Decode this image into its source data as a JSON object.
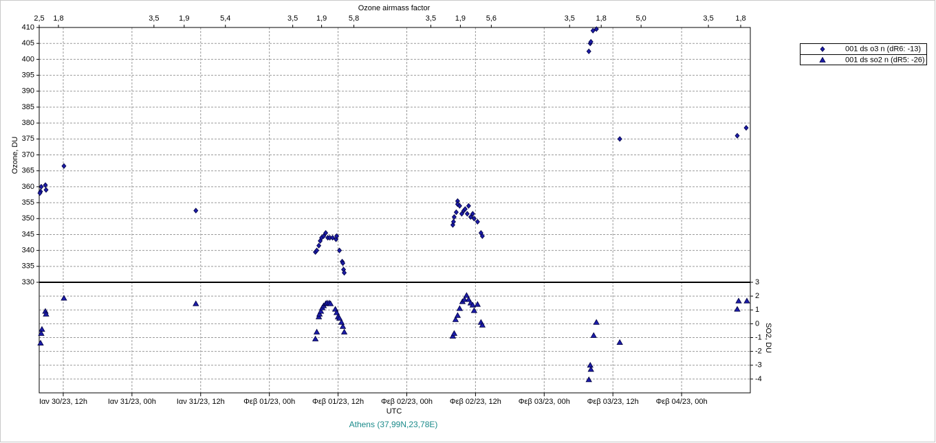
{
  "chart_data": {
    "type": "scatter",
    "x2label": "Ozone airmass factor",
    "xlabel": "UTC",
    "ylabel": "Ozone, DU",
    "y2label": "SO2, DU",
    "caption": "Athens (37,99N,23,78E)",
    "xlim": [
      -4.2,
      120
    ],
    "xticks": [
      {
        "value": 0,
        "label": "Ιαν 30/23, 12h"
      },
      {
        "value": 12,
        "label": "Ιαν 31/23, 00h"
      },
      {
        "value": 24,
        "label": "Ιαν 31/23, 12h"
      },
      {
        "value": 36,
        "label": "Φεβ 01/23, 00h"
      },
      {
        "value": 48,
        "label": "Φεβ 01/23, 12h"
      },
      {
        "value": 60,
        "label": "Φεβ 02/23, 00h"
      },
      {
        "value": 72,
        "label": "Φεβ 02/23, 12h"
      },
      {
        "value": 84,
        "label": "Φεβ 03/23, 00h"
      },
      {
        "value": 96,
        "label": "Φεβ 03/23, 12h"
      },
      {
        "value": 108,
        "label": "Φεβ 04/23, 00h"
      }
    ],
    "x2ticks": [
      {
        "value": -4.2,
        "label": "2,5"
      },
      {
        "value": -0.84,
        "label": "1,8"
      },
      {
        "value": 15.84,
        "label": "3,5"
      },
      {
        "value": 21.12,
        "label": "1,9"
      },
      {
        "value": 28.32,
        "label": "5,4"
      },
      {
        "value": 40.08,
        "label": "3,5"
      },
      {
        "value": 45.12,
        "label": "1,9"
      },
      {
        "value": 50.76,
        "label": "5,8"
      },
      {
        "value": 64.2,
        "label": "3,5"
      },
      {
        "value": 69.36,
        "label": "1,9"
      },
      {
        "value": 74.76,
        "label": "5,6"
      },
      {
        "value": 88.44,
        "label": "3,5"
      },
      {
        "value": 93.96,
        "label": "1,8"
      },
      {
        "value": 100.92,
        "label": "5,0"
      },
      {
        "value": 112.68,
        "label": "3,5"
      },
      {
        "value": 118.32,
        "label": "1,8"
      }
    ],
    "ylim": [
      330,
      410
    ],
    "yticks": [
      330,
      335,
      340,
      345,
      350,
      355,
      360,
      365,
      370,
      375,
      380,
      385,
      390,
      395,
      400,
      405,
      410
    ],
    "y2lim": [
      -5,
      3
    ],
    "y2ticks": [
      -4,
      -3,
      -2,
      -1,
      0,
      1,
      2,
      3
    ],
    "grid": true,
    "legend": "upper right",
    "series": [
      {
        "name": "001 ds o3  n (dR6: -13)",
        "color": "#1c1ca8",
        "marker": "diamond",
        "x": [
          -3.96,
          -4.08,
          -3.84,
          -3.12,
          -3.0,
          0.12,
          23.16,
          44.04,
          44.28,
          44.64,
          44.88,
          45.12,
          45.48,
          45.84,
          46.2,
          46.56,
          47.04,
          47.64,
          47.76,
          48.24,
          48.72,
          48.84,
          48.96,
          49.08,
          68.04,
          68.16,
          68.28,
          68.64,
          68.88,
          68.88,
          69.24,
          69.6,
          69.96,
          70.2,
          70.56,
          70.8,
          71.16,
          71.52,
          71.76,
          72.36,
          72.96,
          73.2,
          91.8,
          92.04,
          92.16,
          92.52,
          93.12,
          97.2,
          117.72,
          119.28
        ],
        "values": [
          358.5,
          358,
          360,
          360.5,
          359,
          366.5,
          352.5,
          339.5,
          340,
          341.5,
          343,
          344,
          344.5,
          345.5,
          344,
          344,
          344,
          343.5,
          344.5,
          340,
          336.5,
          336,
          334,
          333,
          348,
          349,
          350.5,
          352,
          355.5,
          354.5,
          354,
          351.5,
          352.5,
          353,
          351.5,
          354,
          350.5,
          351.5,
          350,
          349,
          345.5,
          344.5,
          402.5,
          405,
          405.5,
          409,
          409.5,
          375,
          376,
          378.5
        ]
      },
      {
        "name": "001 ds so2  n (dR5: -26)",
        "color": "#1c1ca8",
        "marker": "triangle",
        "axis": "y2",
        "x": [
          -3.96,
          -3.72,
          -3.84,
          -3.12,
          -3.0,
          0.12,
          23.16,
          44.04,
          44.28,
          44.64,
          44.76,
          45.0,
          45.24,
          45.48,
          45.84,
          46.08,
          46.44,
          46.68,
          47.52,
          47.76,
          48.0,
          48.24,
          48.6,
          48.84,
          49.08,
          68.04,
          68.28,
          68.52,
          68.88,
          69.24,
          69.72,
          70.08,
          70.44,
          70.8,
          71.16,
          71.52,
          71.76,
          72.36,
          72.96,
          73.2,
          91.8,
          92.04,
          92.16,
          92.64,
          93.12,
          97.2,
          117.72,
          117.96,
          119.4
        ],
        "values": [
          -1.4,
          -0.4,
          -0.7,
          0.9,
          0.7,
          1.85,
          1.45,
          -1.1,
          -0.6,
          0.5,
          0.7,
          0.9,
          1.15,
          1.3,
          1.45,
          1.5,
          1.5,
          1.45,
          1.05,
          0.8,
          0.5,
          0.4,
          0.1,
          -0.2,
          -0.6,
          -0.9,
          -0.7,
          0.3,
          0.6,
          1.1,
          1.6,
          1.75,
          2.05,
          1.75,
          1.5,
          1.35,
          0.95,
          1.4,
          0.1,
          -0.1,
          -4.05,
          -3,
          -3.3,
          -0.85,
          0.1,
          -1.35,
          1.05,
          1.65,
          1.65
        ]
      }
    ]
  }
}
